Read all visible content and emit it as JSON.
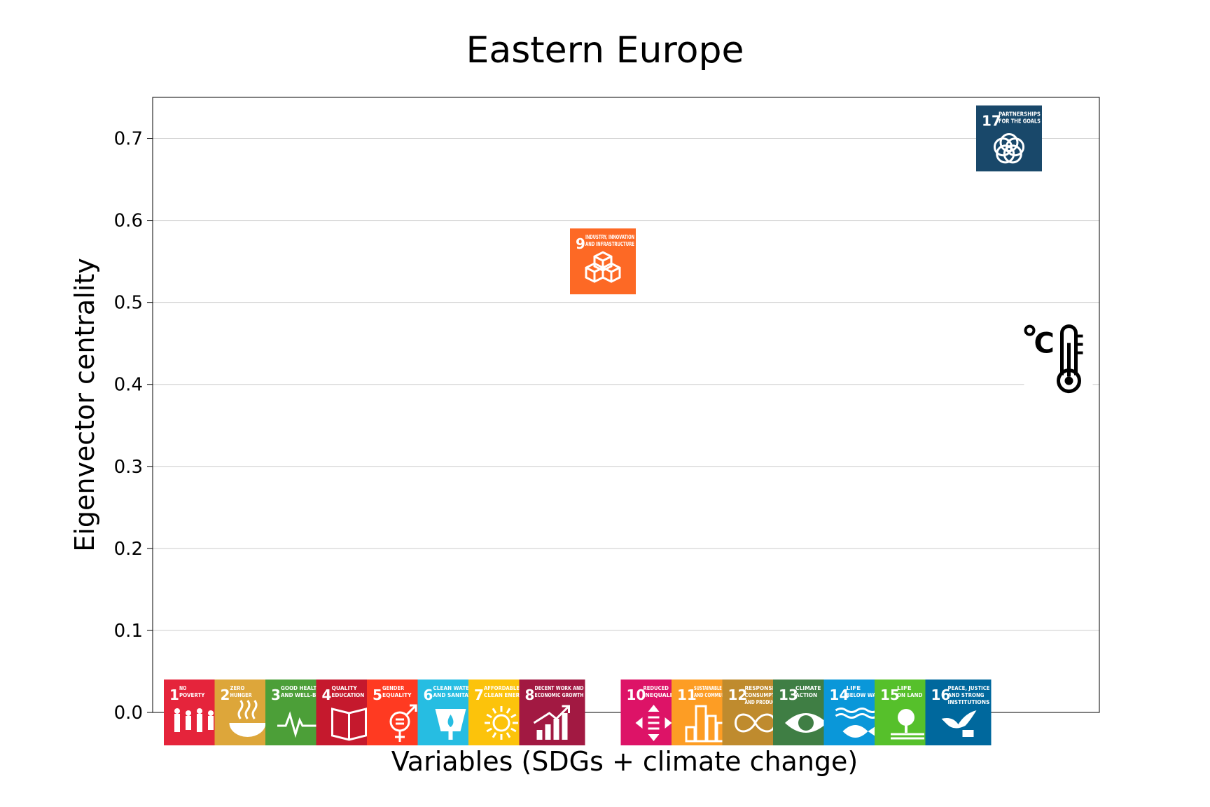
{
  "chart_data": {
    "type": "scatter",
    "title": "Eastern Europe",
    "xlabel": "Variables (SDGs + climate change)",
    "ylabel": "Eigenvector centrality",
    "ylim": [
      0.0,
      0.75
    ],
    "yticks": [
      "0.0",
      "0.1",
      "0.2",
      "0.3",
      "0.4",
      "0.5",
      "0.6",
      "0.7"
    ],
    "grid": "horizontal",
    "points": [
      {
        "num": "1",
        "label": [
          "NO",
          "POVERTY"
        ],
        "color": "#E5243B",
        "y": 0.0,
        "icon": "family-icon"
      },
      {
        "num": "2",
        "label": [
          "ZERO",
          "HUNGER"
        ],
        "color": "#DDA63A",
        "y": 0.0,
        "icon": "bowl-icon"
      },
      {
        "num": "3",
        "label": [
          "GOOD HEALTH",
          "AND WELL-BEING"
        ],
        "color": "#4C9F38",
        "y": 0.0,
        "icon": "heartbeat-icon"
      },
      {
        "num": "4",
        "label": [
          "QUALITY",
          "EDUCATION"
        ],
        "color": "#C5192D",
        "y": 0.0,
        "icon": "book-icon"
      },
      {
        "num": "5",
        "label": [
          "GENDER",
          "EQUALITY"
        ],
        "color": "#FF3A21",
        "y": 0.0,
        "icon": "gender-icon"
      },
      {
        "num": "6",
        "label": [
          "CLEAN WATER",
          "AND SANITATION"
        ],
        "color": "#26BDE2",
        "y": 0.0,
        "icon": "water-drop-icon"
      },
      {
        "num": "7",
        "label": [
          "AFFORDABLE AND",
          "CLEAN ENERGY"
        ],
        "color": "#FCC30B",
        "y": 0.0,
        "icon": "sun-icon"
      },
      {
        "num": "8",
        "label": [
          "DECENT WORK AND",
          "ECONOMIC GROWTH"
        ],
        "color": "#A21942",
        "y": 0.0,
        "icon": "growth-chart-icon"
      },
      {
        "num": "9",
        "label": [
          "INDUSTRY, INNOVATION",
          "AND INFRASTRUCTURE"
        ],
        "color": "#FD6925",
        "y": 0.55,
        "icon": "cubes-icon"
      },
      {
        "num": "10",
        "label": [
          "REDUCED",
          "INEQUALITIES"
        ],
        "color": "#DD1367",
        "y": 0.0,
        "icon": "arrows-icon"
      },
      {
        "num": "11",
        "label": [
          "SUSTAINABLE CITIES",
          "AND COMMUNITIES"
        ],
        "color": "#FD9D24",
        "y": 0.0,
        "icon": "buildings-icon"
      },
      {
        "num": "12",
        "label": [
          "RESPONSIBLE",
          "CONSUMPTION",
          "AND PRODUCTION"
        ],
        "color": "#BF8B2E",
        "y": 0.0,
        "icon": "infinity-icon"
      },
      {
        "num": "13",
        "label": [
          "CLIMATE",
          "ACTION"
        ],
        "color": "#3F7E44",
        "y": 0.0,
        "icon": "eye-globe-icon"
      },
      {
        "num": "14",
        "label": [
          "LIFE",
          "BELOW WATER"
        ],
        "color": "#0A97D9",
        "y": 0.0,
        "icon": "fish-icon"
      },
      {
        "num": "15",
        "label": [
          "LIFE",
          "ON LAND"
        ],
        "color": "#56C02B",
        "y": 0.0,
        "icon": "tree-icon"
      },
      {
        "num": "16",
        "label": [
          "PEACE, JUSTICE",
          "AND STRONG",
          "INSTITUTIONS"
        ],
        "color": "#00689D",
        "y": 0.0,
        "icon": "dove-icon"
      },
      {
        "num": "17",
        "label": [
          "PARTNERSHIPS",
          "FOR THE GOALS"
        ],
        "color": "#19486A",
        "y": 0.7,
        "icon": "rings-icon"
      },
      {
        "num": "",
        "label": [
          "°C"
        ],
        "color": "#000000",
        "y": 0.43,
        "icon": "thermometer-icon"
      }
    ]
  }
}
